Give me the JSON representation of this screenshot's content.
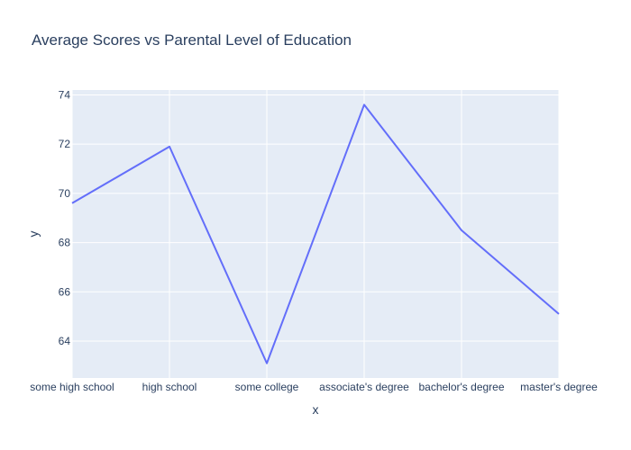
{
  "chart_data": {
    "type": "line",
    "title": "Average Scores vs Parental Level of Education",
    "xlabel": "x",
    "ylabel": "y",
    "categories": [
      "some high school",
      "high school",
      "some college",
      "associate's degree",
      "bachelor's degree",
      "master's degree"
    ],
    "series": [
      {
        "values": [
          69.6,
          71.9,
          63.1,
          73.6,
          68.5,
          65.1
        ]
      }
    ],
    "ylim": [
      62.5,
      74.2
    ],
    "yticks": [
      64,
      66,
      68,
      70,
      72,
      74
    ],
    "grid": true,
    "colors": {
      "line": "#636efa",
      "plot_bg": "#e5ecf6",
      "grid": "#ffffff",
      "text": "#2a3f5f"
    }
  }
}
